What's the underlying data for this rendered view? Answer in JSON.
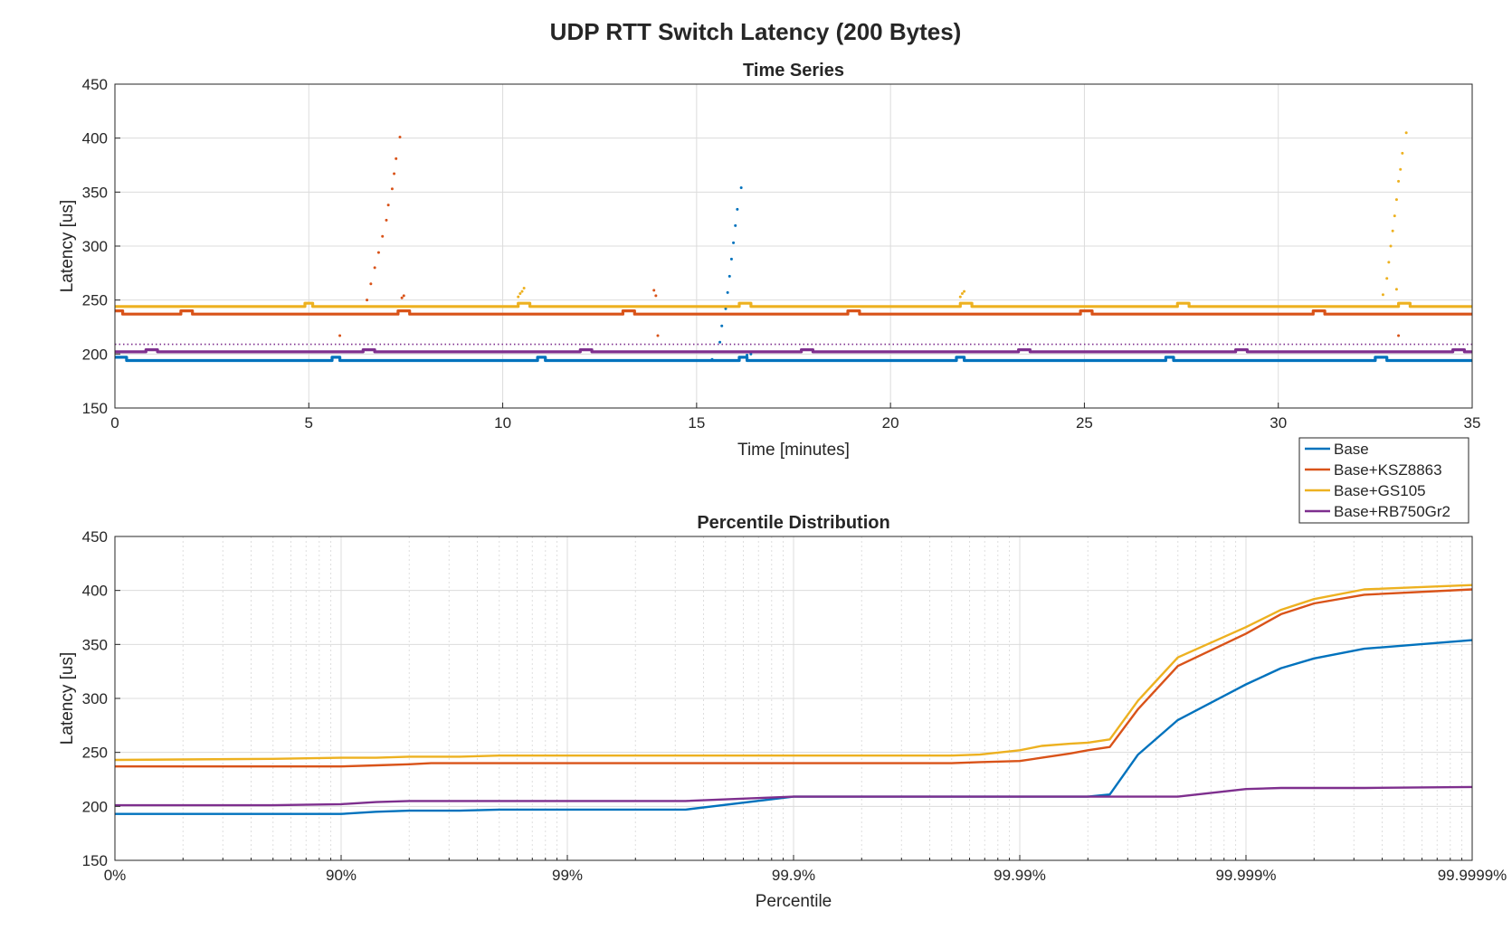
{
  "figure": {
    "title": "UDP RTT Switch Latency (200 Bytes)"
  },
  "colors": {
    "Base": "#0072BD",
    "Base+KSZ8863": "#D95319",
    "Base+GS105": "#EDB120",
    "Base+RB750Gr2": "#7E2F8E",
    "grid": "#dcdcdc",
    "axis": "#262626"
  },
  "legend": {
    "placement": "between panels, right",
    "entries": [
      "Base",
      "Base+KSZ8863",
      "Base+GS105",
      "Base+RB750Gr2"
    ]
  },
  "chart_data": [
    {
      "type": "scatter",
      "title": "Time Series",
      "xlabel": "Time [minutes]",
      "ylabel": "Latency [us]",
      "xlim": [
        0,
        35
      ],
      "ylim": [
        150,
        450
      ],
      "xticks": [
        0,
        5,
        10,
        15,
        20,
        25,
        30,
        35
      ],
      "yticks": [
        150,
        200,
        250,
        300,
        350,
        400,
        450
      ],
      "grid": true,
      "series": [
        {
          "name": "Base",
          "baseline": 194,
          "step_value": 197,
          "step_periods": [
            [
              0,
              0.3
            ],
            [
              5.6,
              5.8
            ],
            [
              10.9,
              11.1
            ],
            [
              16.1,
              16.3
            ],
            [
              21.7,
              21.9
            ],
            [
              27.1,
              27.3
            ],
            [
              32.5,
              32.8
            ]
          ],
          "spikes": [
            [
              15.4,
              195
            ],
            [
              15.6,
              211
            ],
            [
              15.65,
              226
            ],
            [
              15.75,
              242
            ],
            [
              15.8,
              257
            ],
            [
              15.85,
              272
            ],
            [
              15.9,
              288
            ],
            [
              15.95,
              303
            ],
            [
              16.0,
              319
            ],
            [
              16.05,
              334
            ],
            [
              16.15,
              354
            ],
            [
              16.3,
              199
            ],
            [
              16.4,
              200
            ]
          ]
        },
        {
          "name": "Base+KSZ8863",
          "baseline": 237,
          "step_value": 240,
          "step_periods": [
            [
              0,
              0.2
            ],
            [
              1.7,
              2.0
            ],
            [
              7.3,
              7.6
            ],
            [
              13.1,
              13.4
            ],
            [
              18.9,
              19.2
            ],
            [
              24.9,
              25.2
            ],
            [
              30.9,
              31.2
            ]
          ],
          "spikes": [
            [
              5.8,
              217
            ],
            [
              6.5,
              250
            ],
            [
              6.6,
              265
            ],
            [
              6.7,
              280
            ],
            [
              6.8,
              294
            ],
            [
              6.9,
              309
            ],
            [
              7.0,
              324
            ],
            [
              7.05,
              338
            ],
            [
              7.15,
              353
            ],
            [
              7.2,
              367
            ],
            [
              7.25,
              381
            ],
            [
              7.35,
              401
            ],
            [
              7.4,
              252
            ],
            [
              7.45,
              254
            ],
            [
              14.0,
              217
            ],
            [
              13.9,
              259
            ],
            [
              13.95,
              254
            ],
            [
              33.1,
              217
            ]
          ]
        },
        {
          "name": "Base+GS105",
          "baseline": 244,
          "step_value": 247,
          "step_periods": [
            [
              4.9,
              5.1
            ],
            [
              10.4,
              10.7
            ],
            [
              16.1,
              16.4
            ],
            [
              21.8,
              22.1
            ],
            [
              27.4,
              27.7
            ],
            [
              33.1,
              33.4
            ]
          ],
          "spikes": [
            [
              10.4,
              253
            ],
            [
              10.45,
              256
            ],
            [
              10.5,
              258
            ],
            [
              10.55,
              261
            ],
            [
              21.8,
              253
            ],
            [
              21.85,
              256
            ],
            [
              21.9,
              258
            ],
            [
              32.7,
              255
            ],
            [
              32.8,
              270
            ],
            [
              32.85,
              285
            ],
            [
              32.9,
              300
            ],
            [
              32.95,
              314
            ],
            [
              33.0,
              328
            ],
            [
              33.05,
              343
            ],
            [
              33.1,
              360
            ],
            [
              33.15,
              371
            ],
            [
              33.2,
              386
            ],
            [
              33.3,
              405
            ],
            [
              33.05,
              260
            ]
          ]
        },
        {
          "name": "Base+RB750Gr2",
          "baseline": 202,
          "step_value": 204,
          "step_periods": [
            [
              0.8,
              1.1
            ],
            [
              6.4,
              6.7
            ],
            [
              12.0,
              12.3
            ],
            [
              17.7,
              18.0
            ],
            [
              23.3,
              23.6
            ],
            [
              28.9,
              29.2
            ],
            [
              34.5,
              34.8
            ]
          ],
          "secondary_level": 209
        }
      ]
    },
    {
      "type": "line",
      "title": "Percentile Distribution",
      "xlabel": "Percentile",
      "ylabel": "Latency [us]",
      "x_scale": "log of 1/(1 - percentile)",
      "xticks": [
        "0%",
        "90%",
        "99%",
        "99.9%",
        "99.99%",
        "99.999%",
        "99.9999%"
      ],
      "xlim": [
        "0%",
        "99.9999%"
      ],
      "ylim": [
        150,
        450
      ],
      "yticks": [
        150,
        200,
        250,
        300,
        350,
        400,
        450
      ],
      "grid": true,
      "x": [
        "0%",
        "80%",
        "90%",
        "93%",
        "95%",
        "96%",
        "97%",
        "98%",
        "99%",
        "99.5%",
        "99.7%",
        "99.9%",
        "99.93%",
        "99.95%",
        "99.97%",
        "99.98%",
        "99.985%",
        "99.99%",
        "99.992%",
        "99.994%",
        "99.995%",
        "99.996%",
        "99.997%",
        "99.998%",
        "99.999%",
        "99.9993%",
        "99.9995%",
        "99.9997%",
        "99.9999%"
      ],
      "series": [
        {
          "name": "Base",
          "values": [
            193,
            193,
            193,
            195,
            196,
            196,
            196,
            197,
            197,
            197,
            197,
            209,
            209,
            209,
            209,
            209,
            209,
            209,
            209,
            209,
            209,
            211,
            248,
            280,
            313,
            328,
            337,
            346,
            354
          ]
        },
        {
          "name": "Base+KSZ8863",
          "values": [
            237,
            237,
            237,
            238,
            239,
            240,
            240,
            240,
            240,
            240,
            240,
            240,
            240,
            240,
            240,
            240,
            241,
            242,
            245,
            249,
            252,
            255,
            290,
            330,
            360,
            378,
            388,
            396,
            401
          ]
        },
        {
          "name": "Base+GS105",
          "values": [
            243,
            244,
            245,
            245,
            246,
            246,
            246,
            247,
            247,
            247,
            247,
            247,
            247,
            247,
            247,
            247,
            248,
            252,
            256,
            258,
            259,
            262,
            298,
            338,
            366,
            382,
            392,
            401,
            405
          ]
        },
        {
          "name": "Base+RB750Gr2",
          "values": [
            201,
            201,
            202,
            204,
            205,
            205,
            205,
            205,
            205,
            205,
            205,
            209,
            209,
            209,
            209,
            209,
            209,
            209,
            209,
            209,
            209,
            209,
            209,
            209,
            216,
            217,
            217,
            217,
            218
          ]
        }
      ]
    }
  ]
}
